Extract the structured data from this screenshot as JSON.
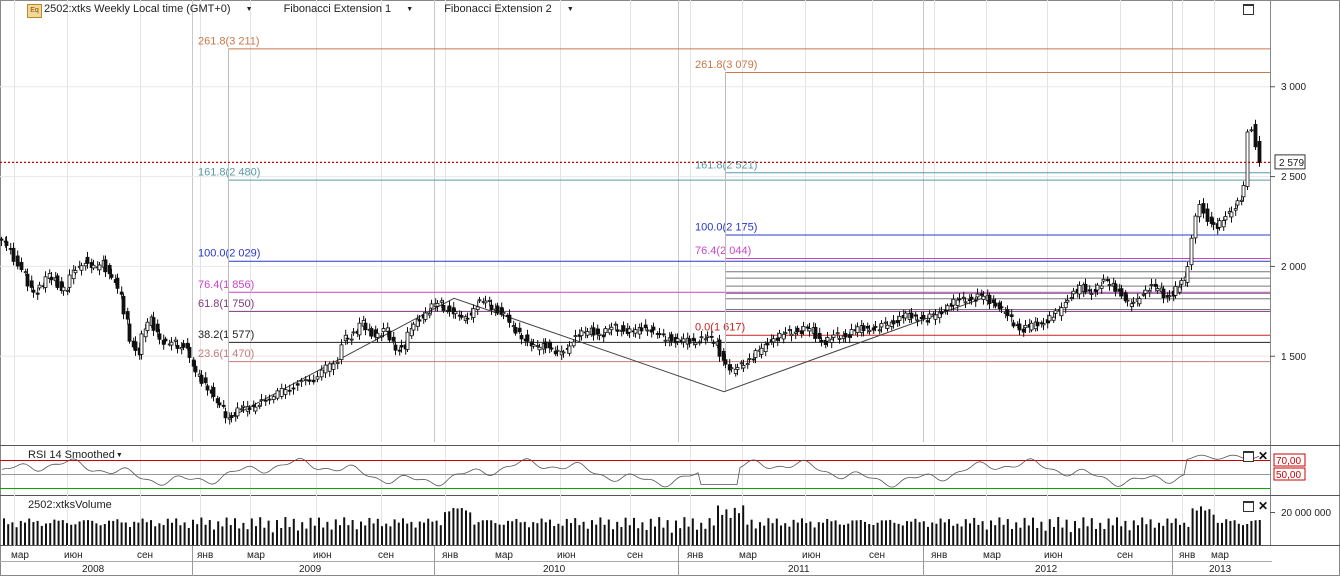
{
  "header": {
    "symbol_label": "2502:xtks Weekly Local time (GMT+0)",
    "indicator_1": "Fibonacci Extension 1",
    "indicator_2": "Fibonacci Extension 2",
    "eq_icon_text": "Eq"
  },
  "price_box": "2 579",
  "rsi_panel": {
    "label": "RSI 14 Smoothed",
    "levels": [
      "70,00",
      "50,00"
    ]
  },
  "volume_panel": {
    "label": "2502:xtksVolume",
    "axis_label": "20 000 000"
  },
  "chart_data": {
    "type": "candlestick",
    "interval": "weekly",
    "y_axis": {
      "ticks": [
        1500,
        2000,
        2500,
        3000
      ],
      "tick_labels": [
        "1 500",
        "2 000",
        "2 500",
        "3 000"
      ],
      "ylim": [
        1020,
        3480
      ]
    },
    "last_price": 2579,
    "price_line_color": "#cc0000",
    "month_labels": [
      "мар",
      "июн",
      "сен",
      "янв",
      "мар",
      "июн",
      "сен",
      "янв",
      "мар",
      "июн",
      "сен",
      "янв",
      "мар",
      "июн",
      "сен",
      "янв",
      "мар",
      "июн",
      "сен",
      "янв",
      "мар"
    ],
    "year_labels": [
      "2008",
      "2009",
      "2010",
      "2011",
      "2012",
      "2013"
    ],
    "fibonacci_extension_1": {
      "levels": [
        {
          "label": "261.8(3 211)",
          "value": 3211,
          "color": "#c8784a"
        },
        {
          "label": "161.8(2 480)",
          "value": 2480,
          "color": "#5a9aa6"
        },
        {
          "label": "100.0(2 029)",
          "value": 2029,
          "color": "#2838c8"
        },
        {
          "label": "76.4(1 856)",
          "value": 1856,
          "color": "#cc44cc"
        },
        {
          "label": "61.8(1 750)",
          "value": 1750,
          "color": "#7a3a7a"
        },
        {
          "label": "38.2(1 577)",
          "value": 1577,
          "color": "#222222"
        },
        {
          "label": "23.6(1 470)",
          "value": 1470,
          "color": "#c87a7a"
        }
      ]
    },
    "fibonacci_extension_2": {
      "levels": [
        {
          "label": "261.8(3 079)",
          "value": 3079,
          "color": "#c8784a"
        },
        {
          "label": "161.8(2 521)",
          "value": 2521,
          "color": "#5a9aa6"
        },
        {
          "label": "100.0(2 175)",
          "value": 2175,
          "color": "#2838c8"
        },
        {
          "label": "76.4(2 044)",
          "value": 2044,
          "color": "#cc44cc"
        },
        {
          "label": "0.0(1 617)",
          "value": 1617,
          "color": "#cc2222"
        }
      ]
    },
    "price_path": [
      [
        0,
        2150
      ],
      [
        5,
        2120
      ],
      [
        12,
        2080
      ],
      [
        20,
        2010
      ],
      [
        26,
        1950
      ],
      [
        32,
        1880
      ],
      [
        38,
        1860
      ],
      [
        44,
        1890
      ],
      [
        50,
        1940
      ],
      [
        56,
        1930
      ],
      [
        62,
        1880
      ],
      [
        68,
        1870
      ],
      [
        74,
        1960
      ],
      [
        80,
        1990
      ],
      [
        86,
        2030
      ],
      [
        92,
        2000
      ],
      [
        98,
        1980
      ],
      [
        104,
        2020
      ],
      [
        110,
        1970
      ],
      [
        116,
        1920
      ],
      [
        122,
        1830
      ],
      [
        128,
        1690
      ],
      [
        134,
        1560
      ],
      [
        140,
        1520
      ],
      [
        146,
        1640
      ],
      [
        152,
        1700
      ],
      [
        158,
        1640
      ],
      [
        164,
        1580
      ],
      [
        170,
        1560
      ],
      [
        176,
        1570
      ],
      [
        182,
        1550
      ],
      [
        188,
        1560
      ],
      [
        194,
        1440
      ],
      [
        200,
        1380
      ],
      [
        206,
        1350
      ],
      [
        212,
        1310
      ],
      [
        218,
        1240
      ],
      [
        224,
        1200
      ],
      [
        230,
        1150
      ],
      [
        236,
        1180
      ],
      [
        242,
        1210
      ],
      [
        248,
        1200
      ],
      [
        254,
        1210
      ],
      [
        260,
        1240
      ],
      [
        268,
        1260
      ],
      [
        276,
        1280
      ],
      [
        284,
        1300
      ],
      [
        292,
        1320
      ],
      [
        300,
        1340
      ],
      [
        308,
        1350
      ],
      [
        316,
        1370
      ],
      [
        324,
        1420
      ],
      [
        332,
        1440
      ],
      [
        340,
        1480
      ],
      [
        346,
        1610
      ],
      [
        352,
        1610
      ],
      [
        358,
        1630
      ],
      [
        364,
        1680
      ],
      [
        370,
        1640
      ],
      [
        376,
        1620
      ],
      [
        382,
        1620
      ],
      [
        388,
        1640
      ],
      [
        394,
        1570
      ],
      [
        400,
        1540
      ],
      [
        406,
        1550
      ],
      [
        412,
        1640
      ],
      [
        418,
        1690
      ],
      [
        424,
        1720
      ],
      [
        430,
        1750
      ],
      [
        436,
        1780
      ],
      [
        442,
        1790
      ],
      [
        448,
        1760
      ],
      [
        454,
        1750
      ],
      [
        460,
        1720
      ],
      [
        466,
        1700
      ],
      [
        472,
        1730
      ],
      [
        478,
        1790
      ],
      [
        484,
        1800
      ],
      [
        490,
        1790
      ],
      [
        496,
        1760
      ],
      [
        502,
        1750
      ],
      [
        508,
        1720
      ],
      [
        514,
        1650
      ],
      [
        520,
        1630
      ],
      [
        526,
        1600
      ],
      [
        532,
        1560
      ],
      [
        538,
        1540
      ],
      [
        544,
        1560
      ],
      [
        550,
        1560
      ],
      [
        556,
        1520
      ],
      [
        562,
        1510
      ],
      [
        568,
        1530
      ],
      [
        574,
        1590
      ],
      [
        580,
        1620
      ],
      [
        586,
        1620
      ],
      [
        592,
        1640
      ],
      [
        598,
        1630
      ],
      [
        604,
        1620
      ],
      [
        610,
        1640
      ],
      [
        616,
        1660
      ],
      [
        622,
        1650
      ],
      [
        628,
        1640
      ],
      [
        634,
        1630
      ],
      [
        640,
        1640
      ],
      [
        646,
        1660
      ],
      [
        652,
        1650
      ],
      [
        658,
        1620
      ],
      [
        664,
        1600
      ],
      [
        670,
        1600
      ],
      [
        676,
        1590
      ],
      [
        682,
        1580
      ],
      [
        688,
        1580
      ],
      [
        694,
        1580
      ],
      [
        700,
        1590
      ],
      [
        706,
        1600
      ],
      [
        712,
        1590
      ],
      [
        718,
        1570
      ],
      [
        724,
        1490
      ],
      [
        730,
        1430
      ],
      [
        736,
        1410
      ],
      [
        742,
        1450
      ],
      [
        748,
        1470
      ],
      [
        754,
        1490
      ],
      [
        760,
        1520
      ],
      [
        766,
        1550
      ],
      [
        772,
        1590
      ],
      [
        778,
        1600
      ],
      [
        784,
        1610
      ],
      [
        790,
        1630
      ],
      [
        796,
        1640
      ],
      [
        802,
        1640
      ],
      [
        808,
        1650
      ],
      [
        814,
        1640
      ],
      [
        820,
        1600
      ],
      [
        826,
        1580
      ],
      [
        832,
        1590
      ],
      [
        838,
        1610
      ],
      [
        844,
        1610
      ],
      [
        850,
        1620
      ],
      [
        856,
        1640
      ],
      [
        862,
        1650
      ],
      [
        868,
        1650
      ],
      [
        874,
        1660
      ],
      [
        880,
        1650
      ],
      [
        886,
        1670
      ],
      [
        892,
        1680
      ],
      [
        898,
        1700
      ],
      [
        904,
        1720
      ],
      [
        910,
        1720
      ],
      [
        916,
        1710
      ],
      [
        922,
        1720
      ],
      [
        928,
        1700
      ],
      [
        934,
        1720
      ],
      [
        940,
        1730
      ],
      [
        946,
        1760
      ],
      [
        952,
        1790
      ],
      [
        958,
        1800
      ],
      [
        964,
        1810
      ],
      [
        970,
        1820
      ],
      [
        976,
        1820
      ],
      [
        982,
        1830
      ],
      [
        988,
        1820
      ],
      [
        994,
        1800
      ],
      [
        1000,
        1780
      ],
      [
        1006,
        1740
      ],
      [
        1012,
        1700
      ],
      [
        1018,
        1670
      ],
      [
        1024,
        1650
      ],
      [
        1030,
        1660
      ],
      [
        1036,
        1670
      ],
      [
        1042,
        1680
      ],
      [
        1048,
        1700
      ],
      [
        1054,
        1720
      ],
      [
        1060,
        1740
      ],
      [
        1066,
        1790
      ],
      [
        1072,
        1840
      ],
      [
        1078,
        1860
      ],
      [
        1084,
        1880
      ],
      [
        1090,
        1850
      ],
      [
        1096,
        1870
      ],
      [
        1102,
        1900
      ],
      [
        1108,
        1910
      ],
      [
        1114,
        1890
      ],
      [
        1120,
        1870
      ],
      [
        1126,
        1820
      ],
      [
        1132,
        1780
      ],
      [
        1138,
        1800
      ],
      [
        1144,
        1850
      ],
      [
        1150,
        1880
      ],
      [
        1156,
        1880
      ],
      [
        1162,
        1860
      ],
      [
        1168,
        1830
      ],
      [
        1174,
        1850
      ],
      [
        1180,
        1880
      ],
      [
        1186,
        1920
      ],
      [
        1190,
        2010
      ],
      [
        1194,
        2150
      ],
      [
        1198,
        2260
      ],
      [
        1202,
        2330
      ],
      [
        1206,
        2300
      ],
      [
        1212,
        2250
      ],
      [
        1218,
        2220
      ],
      [
        1224,
        2240
      ],
      [
        1230,
        2290
      ],
      [
        1236,
        2330
      ],
      [
        1242,
        2380
      ],
      [
        1246,
        2430
      ],
      [
        1250,
        2740
      ],
      [
        1254,
        2770
      ],
      [
        1258,
        2680
      ],
      [
        1261,
        2579
      ]
    ],
    "rsi": {
      "levels": [
        70,
        50
      ]
    }
  }
}
